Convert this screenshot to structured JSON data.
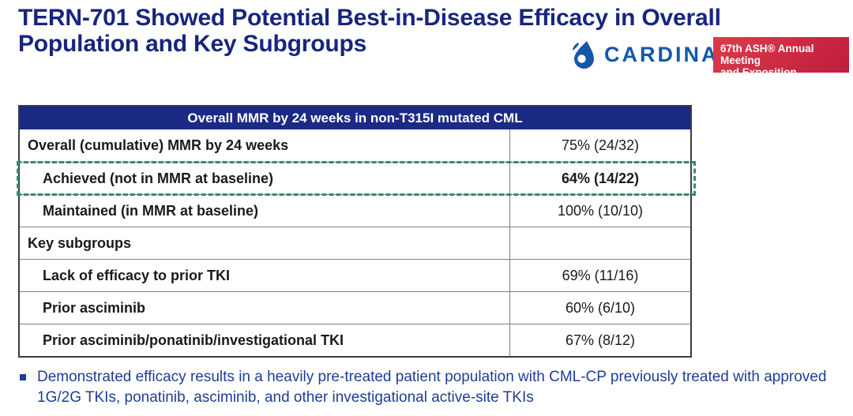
{
  "title": {
    "text": "TERN-701 Showed Potential Best-in-Disease Efficacy in Overall Population and Key Subgroups"
  },
  "logos": {
    "cardinal": {
      "label": "CARDINAL",
      "icon": "droplet-icon"
    },
    "ash": {
      "line1": "67th ASH® Annual Meeting",
      "line2": "and Exposition"
    }
  },
  "table": {
    "header": "Overall MMR by 24 weeks in non-T315I mutated CML",
    "rows": [
      {
        "label": "Overall (cumulative) MMR by 24 weeks",
        "value": "75% (24/32)",
        "indent": false,
        "value_bold": false,
        "highlight": false
      },
      {
        "label": "Achieved (not in MMR at baseline)",
        "value": "64% (14/22)",
        "indent": true,
        "value_bold": true,
        "highlight": true
      },
      {
        "label": "Maintained (in MMR at baseline)",
        "value": "100% (10/10)",
        "indent": true,
        "value_bold": false,
        "highlight": false
      },
      {
        "label": "Key subgroups",
        "value": "",
        "indent": false,
        "value_bold": false,
        "highlight": false
      },
      {
        "label": "Lack of efficacy to prior TKI",
        "value": "69% (11/16)",
        "indent": true,
        "value_bold": false,
        "highlight": false
      },
      {
        "label": "Prior asciminib",
        "value": "60% (6/10)",
        "indent": true,
        "value_bold": false,
        "highlight": false
      },
      {
        "label": "Prior asciminib/ponatinib/investigational TKI",
        "value": "67% (8/12)",
        "indent": true,
        "value_bold": false,
        "highlight": false
      }
    ]
  },
  "footnote": {
    "text": "Demonstrated efficacy results in a heavily pre-treated patient population with CML-CP previously treated with approved 1G/2G TKIs, ponatinib, asciminib, and other investigational active-site TKIs"
  },
  "colors": {
    "title_navy": "#17267D",
    "table_header_bg": "#1A2A85",
    "highlight_green": "#2E8E71",
    "footnote_blue": "#1F3D96",
    "cardinal_blue": "#1458A8",
    "ash_red": "#C8203C"
  }
}
